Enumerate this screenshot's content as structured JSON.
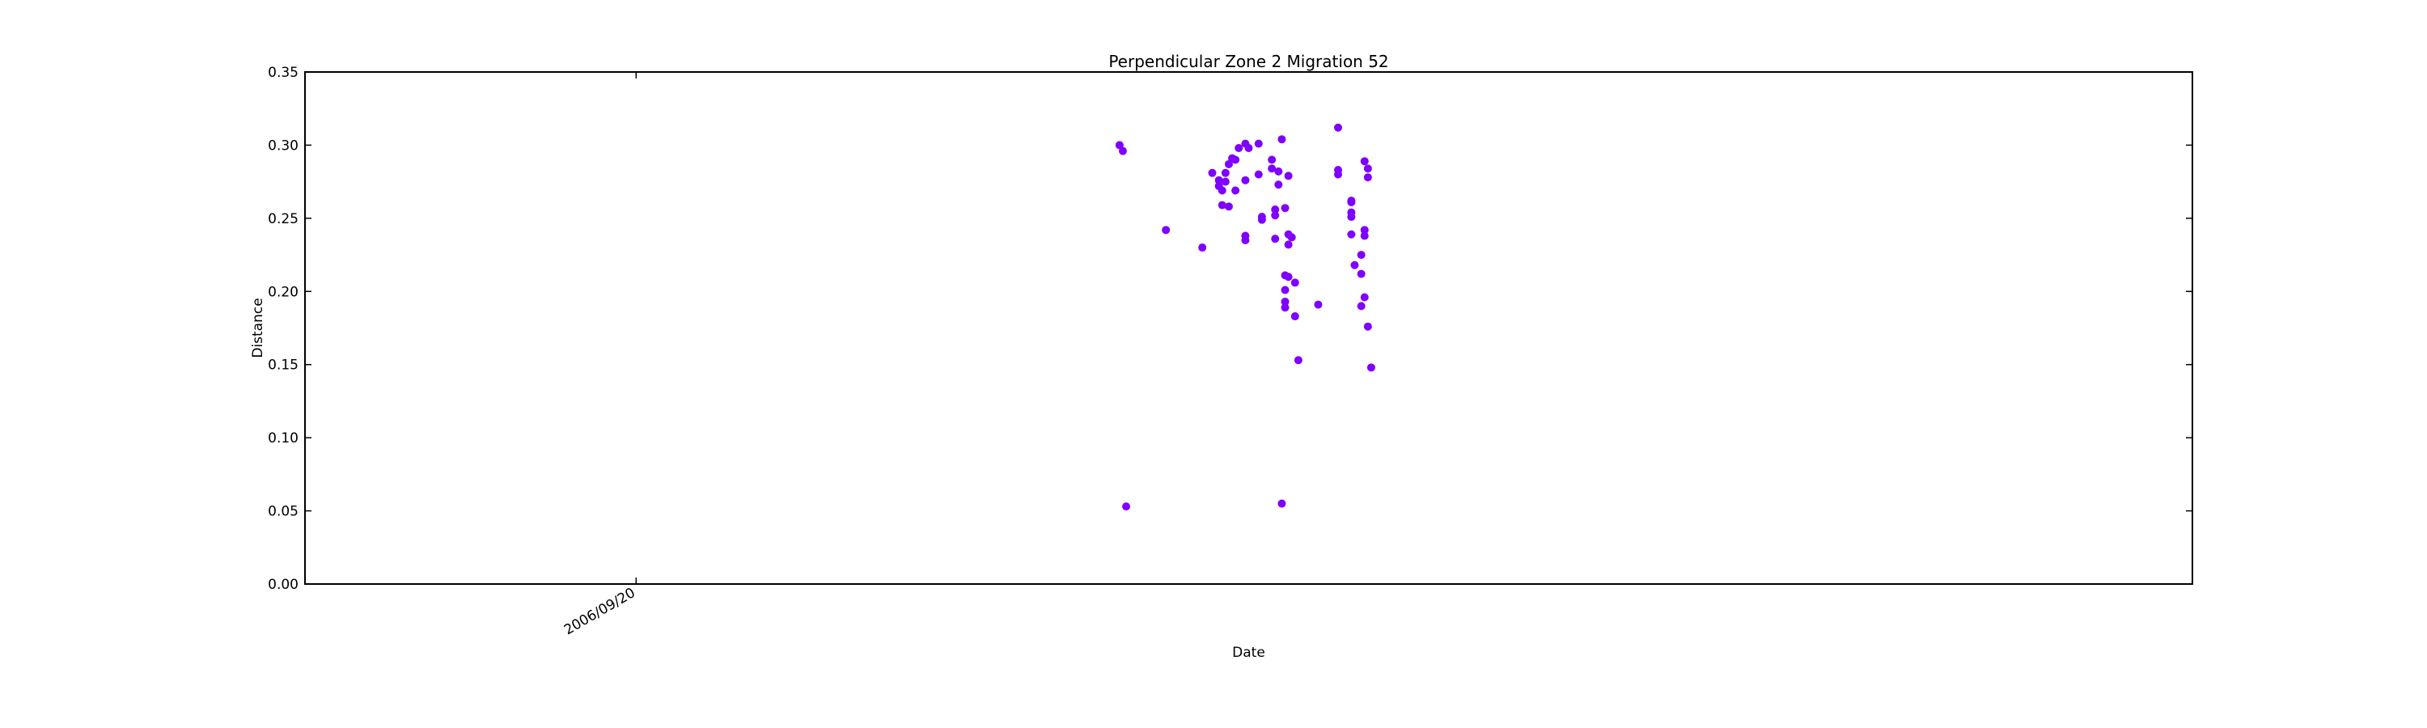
{
  "chart_data": {
    "type": "scatter",
    "title": "Perpendicular Zone 2 Migration 52",
    "xlabel": "Date",
    "ylabel": "Distance",
    "ylim": [
      0,
      0.35
    ],
    "yticks": [
      "0.00",
      "0.05",
      "0.10",
      "0.15",
      "0.20",
      "0.25",
      "0.30",
      "0.35"
    ],
    "xticks": [
      {
        "label": "2006/09/20",
        "day": 20
      }
    ],
    "xlim_day": [
      10,
      67
    ],
    "marker_color": "#7f00ff",
    "grid": false,
    "legend": "none",
    "points": [
      {
        "day": 34.6,
        "y": 0.3
      },
      {
        "day": 34.7,
        "y": 0.296
      },
      {
        "day": 34.8,
        "y": 0.053
      },
      {
        "day": 36.0,
        "y": 0.242
      },
      {
        "day": 37.1,
        "y": 0.23
      },
      {
        "day": 37.4,
        "y": 0.281
      },
      {
        "day": 37.6,
        "y": 0.276
      },
      {
        "day": 37.6,
        "y": 0.272
      },
      {
        "day": 37.7,
        "y": 0.269
      },
      {
        "day": 37.7,
        "y": 0.259
      },
      {
        "day": 37.8,
        "y": 0.281
      },
      {
        "day": 37.8,
        "y": 0.275
      },
      {
        "day": 37.9,
        "y": 0.287
      },
      {
        "day": 37.9,
        "y": 0.258
      },
      {
        "day": 38.0,
        "y": 0.291
      },
      {
        "day": 38.1,
        "y": 0.29
      },
      {
        "day": 38.1,
        "y": 0.269
      },
      {
        "day": 38.2,
        "y": 0.298
      },
      {
        "day": 38.4,
        "y": 0.301
      },
      {
        "day": 38.4,
        "y": 0.276
      },
      {
        "day": 38.4,
        "y": 0.238
      },
      {
        "day": 38.4,
        "y": 0.235
      },
      {
        "day": 38.5,
        "y": 0.298
      },
      {
        "day": 38.8,
        "y": 0.301
      },
      {
        "day": 38.8,
        "y": 0.28
      },
      {
        "day": 38.9,
        "y": 0.251
      },
      {
        "day": 38.9,
        "y": 0.249
      },
      {
        "day": 39.2,
        "y": 0.29
      },
      {
        "day": 39.2,
        "y": 0.284
      },
      {
        "day": 39.3,
        "y": 0.256
      },
      {
        "day": 39.3,
        "y": 0.252
      },
      {
        "day": 39.3,
        "y": 0.236
      },
      {
        "day": 39.4,
        "y": 0.273
      },
      {
        "day": 39.4,
        "y": 0.282
      },
      {
        "day": 39.5,
        "y": 0.304
      },
      {
        "day": 39.5,
        "y": 0.055
      },
      {
        "day": 39.6,
        "y": 0.257
      },
      {
        "day": 39.6,
        "y": 0.211
      },
      {
        "day": 39.6,
        "y": 0.201
      },
      {
        "day": 39.6,
        "y": 0.193
      },
      {
        "day": 39.6,
        "y": 0.189
      },
      {
        "day": 39.7,
        "y": 0.279
      },
      {
        "day": 39.7,
        "y": 0.21
      },
      {
        "day": 39.7,
        "y": 0.239
      },
      {
        "day": 39.7,
        "y": 0.232
      },
      {
        "day": 39.8,
        "y": 0.237
      },
      {
        "day": 39.9,
        "y": 0.206
      },
      {
        "day": 39.9,
        "y": 0.183
      },
      {
        "day": 40.0,
        "y": 0.153
      },
      {
        "day": 40.6,
        "y": 0.191
      },
      {
        "day": 41.2,
        "y": 0.312
      },
      {
        "day": 41.2,
        "y": 0.283
      },
      {
        "day": 41.2,
        "y": 0.28
      },
      {
        "day": 41.6,
        "y": 0.262
      },
      {
        "day": 41.6,
        "y": 0.261
      },
      {
        "day": 41.6,
        "y": 0.254
      },
      {
        "day": 41.6,
        "y": 0.251
      },
      {
        "day": 41.6,
        "y": 0.239
      },
      {
        "day": 41.7,
        "y": 0.218
      },
      {
        "day": 41.9,
        "y": 0.225
      },
      {
        "day": 41.9,
        "y": 0.212
      },
      {
        "day": 41.9,
        "y": 0.19
      },
      {
        "day": 42.0,
        "y": 0.289
      },
      {
        "day": 42.0,
        "y": 0.242
      },
      {
        "day": 42.0,
        "y": 0.238
      },
      {
        "day": 42.0,
        "y": 0.196
      },
      {
        "day": 42.1,
        "y": 0.284
      },
      {
        "day": 42.1,
        "y": 0.278
      },
      {
        "day": 42.1,
        "y": 0.176
      },
      {
        "day": 42.2,
        "y": 0.148
      }
    ]
  }
}
